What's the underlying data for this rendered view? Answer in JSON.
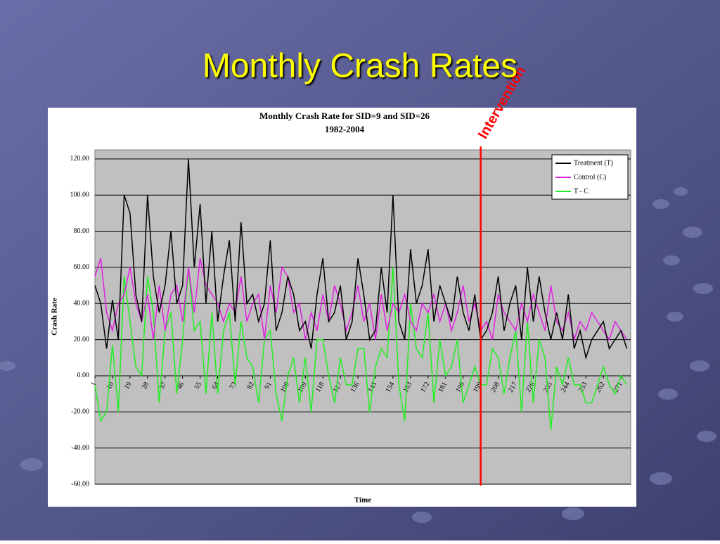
{
  "slide_title": "Monthly Crash Rates",
  "chart_data": {
    "type": "line",
    "title": "Monthly Crash Rate for SID=9 and SID=26",
    "subtitle": "1982-2004",
    "y_label": "Crash Rate",
    "x_label": "Time",
    "grid": true,
    "legend": "upper right",
    "xlim": [
      1,
      276
    ],
    "xticks": [
      1,
      10,
      19,
      28,
      37,
      46,
      55,
      64,
      73,
      82,
      91,
      100,
      109,
      118,
      127,
      136,
      145,
      154,
      163,
      172,
      181,
      190,
      199,
      208,
      217,
      226,
      235,
      244,
      253,
      262,
      271
    ],
    "ylim": [
      -60,
      125
    ],
    "yticks": [
      {
        "value": -60,
        "label": "-60.00"
      },
      {
        "value": -40,
        "label": "-40.00"
      },
      {
        "value": -20,
        "label": "-20.00"
      },
      {
        "value": 0,
        "label": "0.00"
      },
      {
        "value": 20,
        "label": "20.00"
      },
      {
        "value": 40,
        "label": "40.00"
      },
      {
        "value": 60,
        "label": "60.00"
      },
      {
        "value": 80,
        "label": "80.00"
      },
      {
        "value": 100,
        "label": "100.00"
      },
      {
        "value": 120,
        "label": "120.00"
      }
    ],
    "x": [
      1,
      4,
      7,
      10,
      13,
      16,
      19,
      22,
      25,
      28,
      31,
      34,
      37,
      40,
      43,
      46,
      49,
      52,
      55,
      58,
      61,
      64,
      67,
      70,
      73,
      76,
      79,
      82,
      85,
      88,
      91,
      94,
      97,
      100,
      103,
      106,
      109,
      112,
      115,
      118,
      121,
      124,
      127,
      130,
      133,
      136,
      139,
      142,
      145,
      148,
      151,
      154,
      157,
      160,
      163,
      166,
      169,
      172,
      175,
      178,
      181,
      184,
      187,
      190,
      193,
      196,
      199,
      202,
      205,
      208,
      211,
      214,
      217,
      220,
      223,
      226,
      229,
      232,
      235,
      238,
      241,
      244,
      247,
      250,
      253,
      256,
      259,
      262,
      265,
      268,
      271,
      274
    ],
    "series": [
      {
        "name": "Treatment (T)",
        "color": "#000000",
        "values": [
          50,
          40,
          15,
          42,
          20,
          100,
          90,
          45,
          30,
          100,
          55,
          35,
          50,
          80,
          40,
          50,
          120,
          60,
          95,
          40,
          80,
          30,
          55,
          75,
          30,
          85,
          40,
          45,
          30,
          40,
          75,
          25,
          35,
          55,
          45,
          25,
          30,
          15,
          45,
          65,
          30,
          35,
          50,
          20,
          30,
          65,
          45,
          20,
          25,
          60,
          35,
          100,
          30,
          20,
          70,
          40,
          50,
          70,
          30,
          50,
          40,
          30,
          55,
          35,
          25,
          45,
          20,
          25,
          35,
          55,
          25,
          40,
          50,
          20,
          60,
          30,
          55,
          35,
          20,
          35,
          20,
          45,
          15,
          25,
          10,
          20,
          25,
          30,
          15,
          20,
          25,
          15
        ]
      },
      {
        "name": "Control (C)",
        "color": "#e020e0",
        "values": [
          55,
          65,
          35,
          25,
          40,
          45,
          60,
          40,
          30,
          45,
          20,
          50,
          25,
          45,
          50,
          30,
          60,
          35,
          65,
          50,
          45,
          40,
          30,
          40,
          35,
          55,
          30,
          40,
          45,
          20,
          50,
          35,
          60,
          55,
          35,
          40,
          20,
          35,
          25,
          45,
          30,
          50,
          40,
          25,
          35,
          50,
          30,
          40,
          20,
          45,
          25,
          40,
          35,
          45,
          30,
          25,
          40,
          35,
          45,
          30,
          40,
          25,
          35,
          50,
          30,
          40,
          25,
          30,
          20,
          45,
          35,
          30,
          25,
          40,
          30,
          45,
          35,
          25,
          50,
          30,
          25,
          35,
          20,
          30,
          25,
          35,
          30,
          25,
          20,
          30,
          25,
          20
        ]
      },
      {
        "name": "T - C",
        "color": "#22ee22",
        "values": [
          -5,
          -25,
          -20,
          17,
          -20,
          55,
          30,
          5,
          0,
          55,
          35,
          -15,
          25,
          35,
          -10,
          20,
          60,
          25,
          30,
          -10,
          35,
          -10,
          25,
          35,
          -5,
          30,
          10,
          5,
          -15,
          20,
          25,
          -10,
          -25,
          0,
          10,
          -15,
          10,
          -20,
          20,
          20,
          0,
          -15,
          10,
          -5,
          -5,
          15,
          15,
          -20,
          5,
          15,
          10,
          60,
          -5,
          -25,
          40,
          15,
          10,
          35,
          -15,
          20,
          0,
          5,
          20,
          -15,
          -5,
          5,
          -5,
          -5,
          15,
          10,
          -10,
          10,
          25,
          -20,
          30,
          -15,
          20,
          10,
          -30,
          5,
          -5,
          10,
          -5,
          -5,
          -15,
          -15,
          -5,
          5,
          -5,
          -10,
          0,
          -5
        ]
      }
    ],
    "intervention": {
      "label": "Intervention",
      "x": 199,
      "color": "#ff0000"
    }
  }
}
